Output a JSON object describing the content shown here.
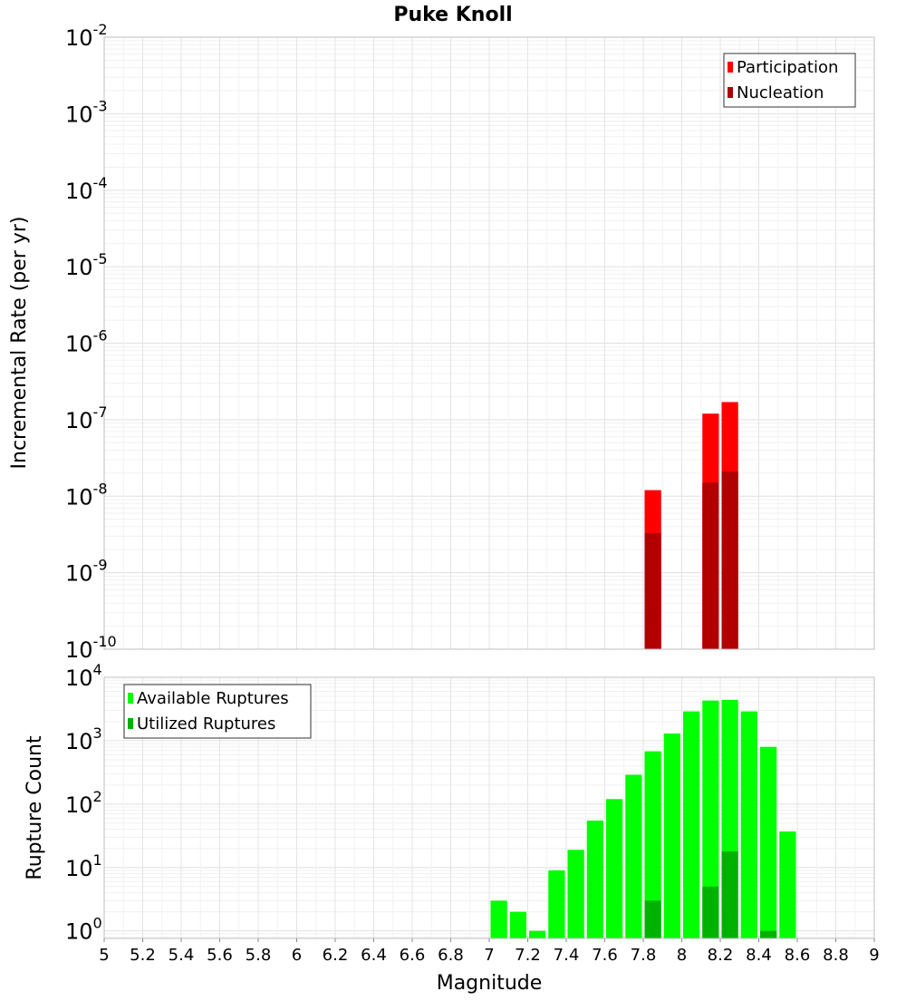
{
  "title": "Puke Knoll",
  "xlabel": "Magnitude",
  "colors": {
    "participation": "#ff0000",
    "nucleation": "#b20000",
    "available": "#00ff00",
    "utilized": "#00b200",
    "grid": "#e6e6e6",
    "frame": "#bfbfbf"
  },
  "chart_data": [
    {
      "type": "bar",
      "ylabel": "Incremental Rate (per yr)",
      "yscale": "log",
      "xlim": [
        5,
        9
      ],
      "ylim": [
        1e-10,
        0.01
      ],
      "y_tick_exponents": [
        "-2",
        "-3",
        "-4",
        "-5",
        "-6",
        "-7",
        "-8",
        "-9",
        "-10"
      ],
      "legend_position": "top-right",
      "series": [
        {
          "name": "Participation",
          "x": [
            7.85,
            8.15,
            8.25
          ],
          "values": [
            1.2e-08,
            1.2e-07,
            1.7e-07
          ]
        },
        {
          "name": "Nucleation",
          "x": [
            7.85,
            8.15,
            8.25
          ],
          "values": [
            3.3e-09,
            1.5e-08,
            2.1e-08
          ]
        }
      ]
    },
    {
      "type": "bar",
      "ylabel": "Rupture Count",
      "yscale": "log",
      "xlim": [
        5,
        9
      ],
      "ylim": [
        0.76,
        10000
      ],
      "y_tick_exponents": [
        "0",
        "1",
        "2",
        "3",
        "4"
      ],
      "legend_position": "top-left",
      "series": [
        {
          "name": "Available Ruptures",
          "x": [
            7.05,
            7.15,
            7.25,
            7.35,
            7.45,
            7.55,
            7.65,
            7.75,
            7.85,
            7.95,
            8.05,
            8.15,
            8.25,
            8.35,
            8.45,
            8.55
          ],
          "values": [
            3,
            2,
            1,
            9,
            19,
            55,
            120,
            290,
            680,
            1300,
            2900,
            4300,
            4400,
            2900,
            800,
            37
          ]
        },
        {
          "name": "Utilized Ruptures",
          "x": [
            7.85,
            8.15,
            8.25,
            8.45
          ],
          "values": [
            3,
            5,
            18,
            1
          ]
        }
      ]
    }
  ],
  "x_ticks": [
    "5",
    "5.2",
    "5.4",
    "5.6",
    "5.8",
    "6",
    "6.2",
    "6.4",
    "6.6",
    "6.8",
    "7",
    "7.2",
    "7.4",
    "7.6",
    "7.8",
    "8",
    "8.2",
    "8.4",
    "8.6",
    "8.8",
    "9"
  ]
}
